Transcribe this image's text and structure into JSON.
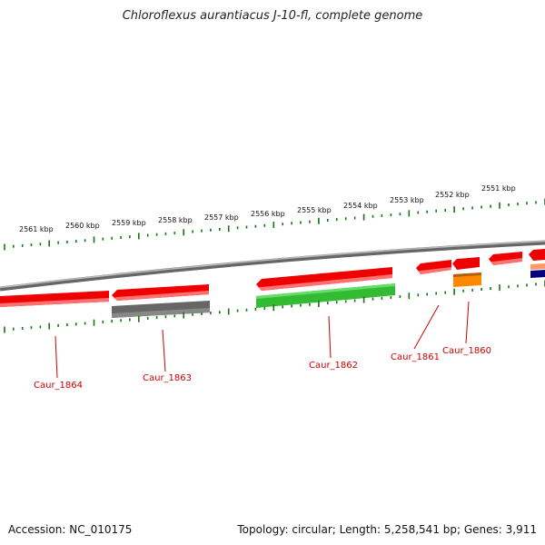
{
  "title": "Chloroflexus aurantiacus J-10-fl, complete genome",
  "footer": {
    "accession": "Accession: NC_010175",
    "topology": "Topology: circular; Length: 5,258,541 bp; Genes: 3,911"
  },
  "ruler": {
    "labels": [
      "2561 kbp",
      "2560 kbp",
      "2559 kbp",
      "2558 kbp",
      "2557 kbp",
      "2556 kbp",
      "2555 kbp",
      "2554 kbp",
      "2553 kbp",
      "2552 kbp",
      "2551 kbp"
    ]
  },
  "genes": [
    {
      "name": "Caur_1864",
      "color": "#dd0000"
    },
    {
      "name": "Caur_1863",
      "color": "#dd0000"
    },
    {
      "name": "Caur_1862",
      "color": "#dd0000"
    },
    {
      "name": "Caur_1861",
      "color": "#dd0000"
    },
    {
      "name": "Caur_1860",
      "color": "#dd0000"
    }
  ],
  "colors": {
    "cds": "#ee0000",
    "cog_grey": "#666666",
    "cog_green": "#33bb33",
    "cog_orange": "#ff8800",
    "cog_navy": "#000080",
    "ticks": "#117711",
    "backbone": "#888888",
    "gene_label": "#cc0000"
  }
}
